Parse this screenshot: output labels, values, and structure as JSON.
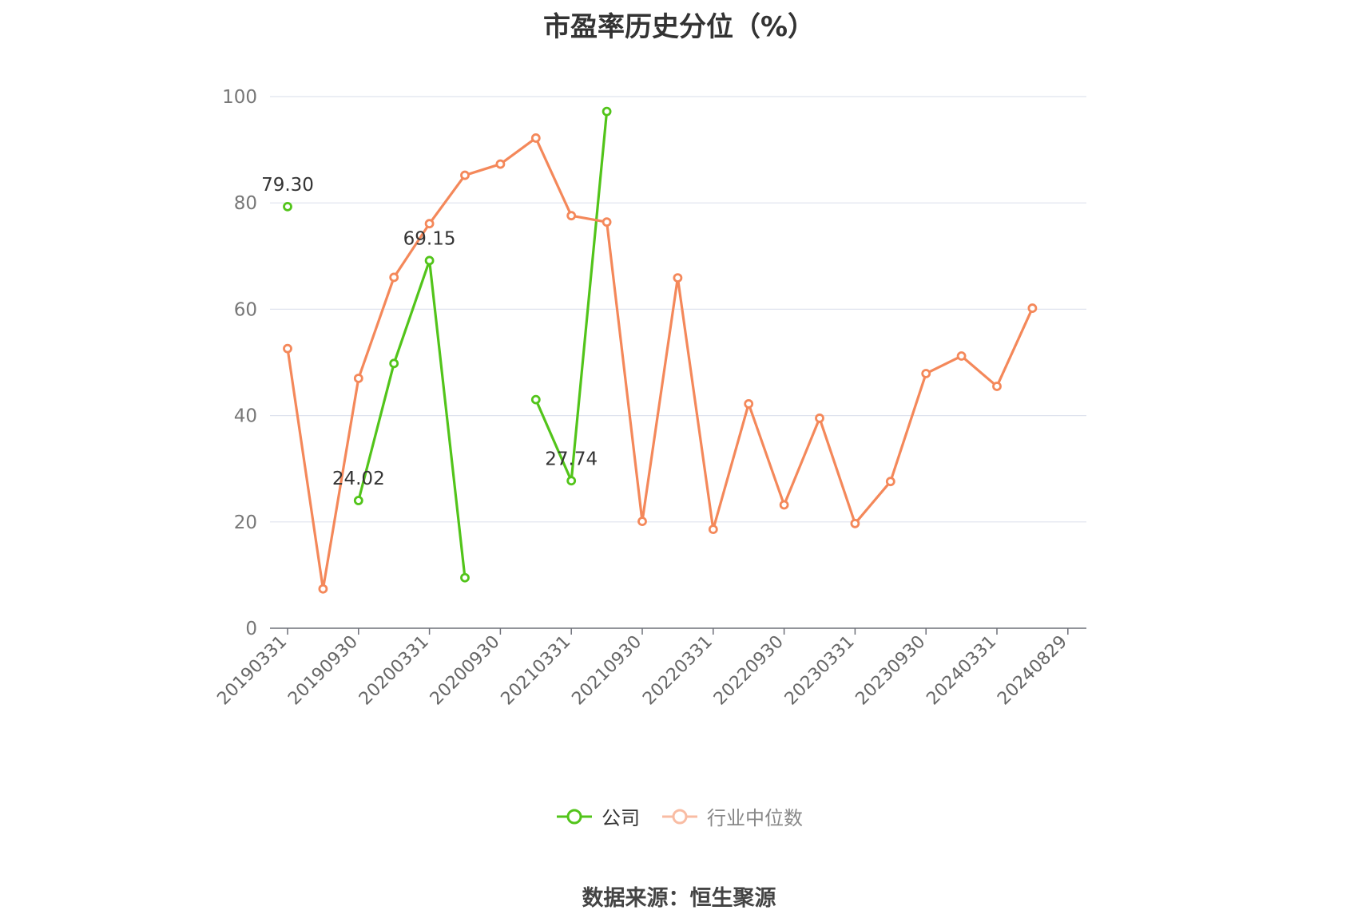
{
  "title": "市盈率历史分位（%）",
  "source": "数据来源：恒生聚源",
  "legend": [
    {
      "name": "公司",
      "color": "#52c41a",
      "active": true
    },
    {
      "name": "行业中位数",
      "color": "#f4885a",
      "active": false
    }
  ],
  "chart_data": {
    "type": "line",
    "title": "市盈率历史分位（%）",
    "x_tick_labels": [
      "20190331",
      "20190930",
      "20200331",
      "20200930",
      "20210331",
      "20210930",
      "20220331",
      "20220930",
      "20230331",
      "20230930",
      "20240331",
      "20240829"
    ],
    "ylim": [
      0,
      100
    ],
    "y_ticks": [
      0,
      20,
      40,
      60,
      80,
      100
    ],
    "grid": true,
    "legend_position": "bottom-center",
    "series": [
      {
        "name": "公司",
        "color": "#52c41a",
        "values": [
          79.3,
          null,
          24.02,
          49.8,
          69.15,
          9.5,
          null,
          43.0,
          27.74,
          97.2,
          null,
          null,
          null,
          null,
          null,
          null,
          null,
          null,
          null,
          null,
          null,
          null
        ],
        "point_labels": [
          "79.30",
          null,
          "24.02",
          null,
          "69.15",
          null,
          null,
          null,
          "27.74",
          null,
          null,
          null,
          null,
          null,
          null,
          null,
          null,
          null,
          null,
          null,
          null,
          null
        ]
      },
      {
        "name": "行业中位数",
        "color": "#f4885a",
        "values": [
          52.6,
          7.4,
          47.0,
          66.0,
          76.1,
          85.2,
          87.3,
          92.2,
          77.6,
          76.4,
          20.1,
          65.9,
          18.6,
          42.2,
          23.2,
          39.5,
          19.7,
          27.6,
          47.9,
          51.2,
          45.5,
          60.2
        ]
      }
    ]
  }
}
